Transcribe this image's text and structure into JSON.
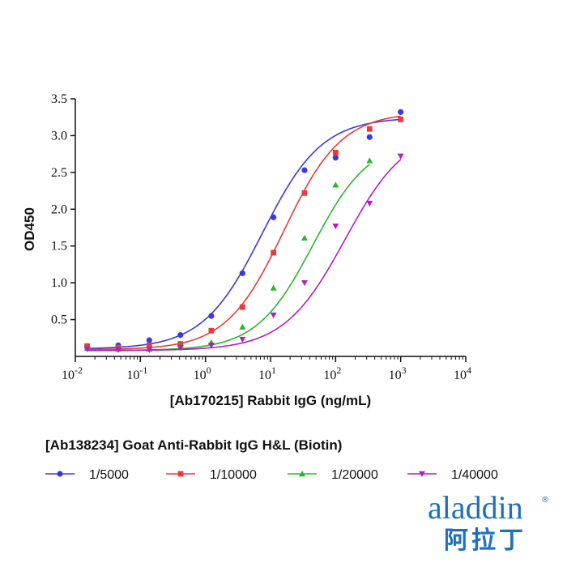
{
  "chart_data": {
    "type": "scatter",
    "xscale": "log",
    "xlabel": "[Ab170215] Rabbit IgG (ng/mL)",
    "ylabel": "OD450",
    "xlim": [
      0.01,
      10000
    ],
    "ylim": [
      0,
      3.5
    ],
    "x_ticks": [
      {
        "value": 0.01,
        "base": "10",
        "exp": "-2"
      },
      {
        "value": 0.1,
        "base": "10",
        "exp": "-1"
      },
      {
        "value": 1,
        "base": "10",
        "exp": "0"
      },
      {
        "value": 10,
        "base": "10",
        "exp": "1"
      },
      {
        "value": 100,
        "base": "10",
        "exp": "2"
      },
      {
        "value": 1000,
        "base": "10",
        "exp": "3"
      },
      {
        "value": 10000,
        "base": "10",
        "exp": "4"
      }
    ],
    "y_ticks": [
      {
        "value": 0.5,
        "label": "0.5"
      },
      {
        "value": 1.0,
        "label": "1.0"
      },
      {
        "value": 1.5,
        "label": "1.5"
      },
      {
        "value": 2.0,
        "label": "2.0"
      },
      {
        "value": 2.5,
        "label": "2.5"
      },
      {
        "value": 3.0,
        "label": "3.0"
      },
      {
        "value": 3.5,
        "label": "3.5"
      }
    ],
    "x": [
      0.0152,
      0.0457,
      0.137,
      0.412,
      1.23,
      3.7,
      11.1,
      33.3,
      100,
      333,
      1000
    ],
    "series": [
      {
        "name": "1/5000",
        "color": "#3a3adf",
        "marker": "circle",
        "values": [
          0.14,
          0.15,
          0.22,
          0.29,
          0.55,
          1.13,
          1.89,
          2.53,
          2.7,
          2.98,
          3.32
        ],
        "fit": {
          "bottom": 0.1,
          "top": 3.25,
          "ec50": 7.5,
          "hill": 0.95
        },
        "fit_range": [
          0.0152,
          1000
        ]
      },
      {
        "name": "1/10000",
        "color": "#e83b3b",
        "marker": "square",
        "values": [
          0.14,
          0.12,
          0.15,
          0.17,
          0.35,
          0.67,
          1.41,
          2.22,
          2.77,
          3.09,
          3.22
        ],
        "fit": {
          "bottom": 0.09,
          "top": 3.32,
          "ec50": 16,
          "hill": 0.98
        },
        "fit_range": [
          0.0152,
          1000
        ]
      },
      {
        "name": "1/20000",
        "color": "#2bb52b",
        "marker": "triangle-up",
        "values": [
          0.11,
          0.1,
          0.1,
          0.14,
          0.19,
          0.4,
          0.93,
          1.61,
          2.33,
          2.66,
          null
        ],
        "fit": {
          "bottom": 0.08,
          "top": 2.95,
          "ec50": 45,
          "hill": 1.0
        },
        "fit_range": [
          0.0152,
          333
        ]
      },
      {
        "name": "1/40000",
        "color": "#b31fbf",
        "marker": "triangle-down",
        "values": [
          0.1,
          0.09,
          0.09,
          0.12,
          0.15,
          0.23,
          0.56,
          1.0,
          1.77,
          2.08,
          2.72
        ],
        "fit": {
          "bottom": 0.08,
          "top": 3.1,
          "ec50": 140,
          "hill": 0.92
        },
        "fit_range": [
          0.0152,
          1000
        ]
      }
    ],
    "legend": {
      "title": "[Ab138234] Goat Anti-Rabbit IgG H&L (Biotin)",
      "placement": "bottom",
      "entries": [
        "1/5000",
        "1/10000",
        "1/20000",
        "1/40000"
      ]
    }
  },
  "logo": {
    "latin": "aladdin",
    "cjk": "阿拉丁",
    "reg": "®",
    "color": "#1f6fbf"
  }
}
